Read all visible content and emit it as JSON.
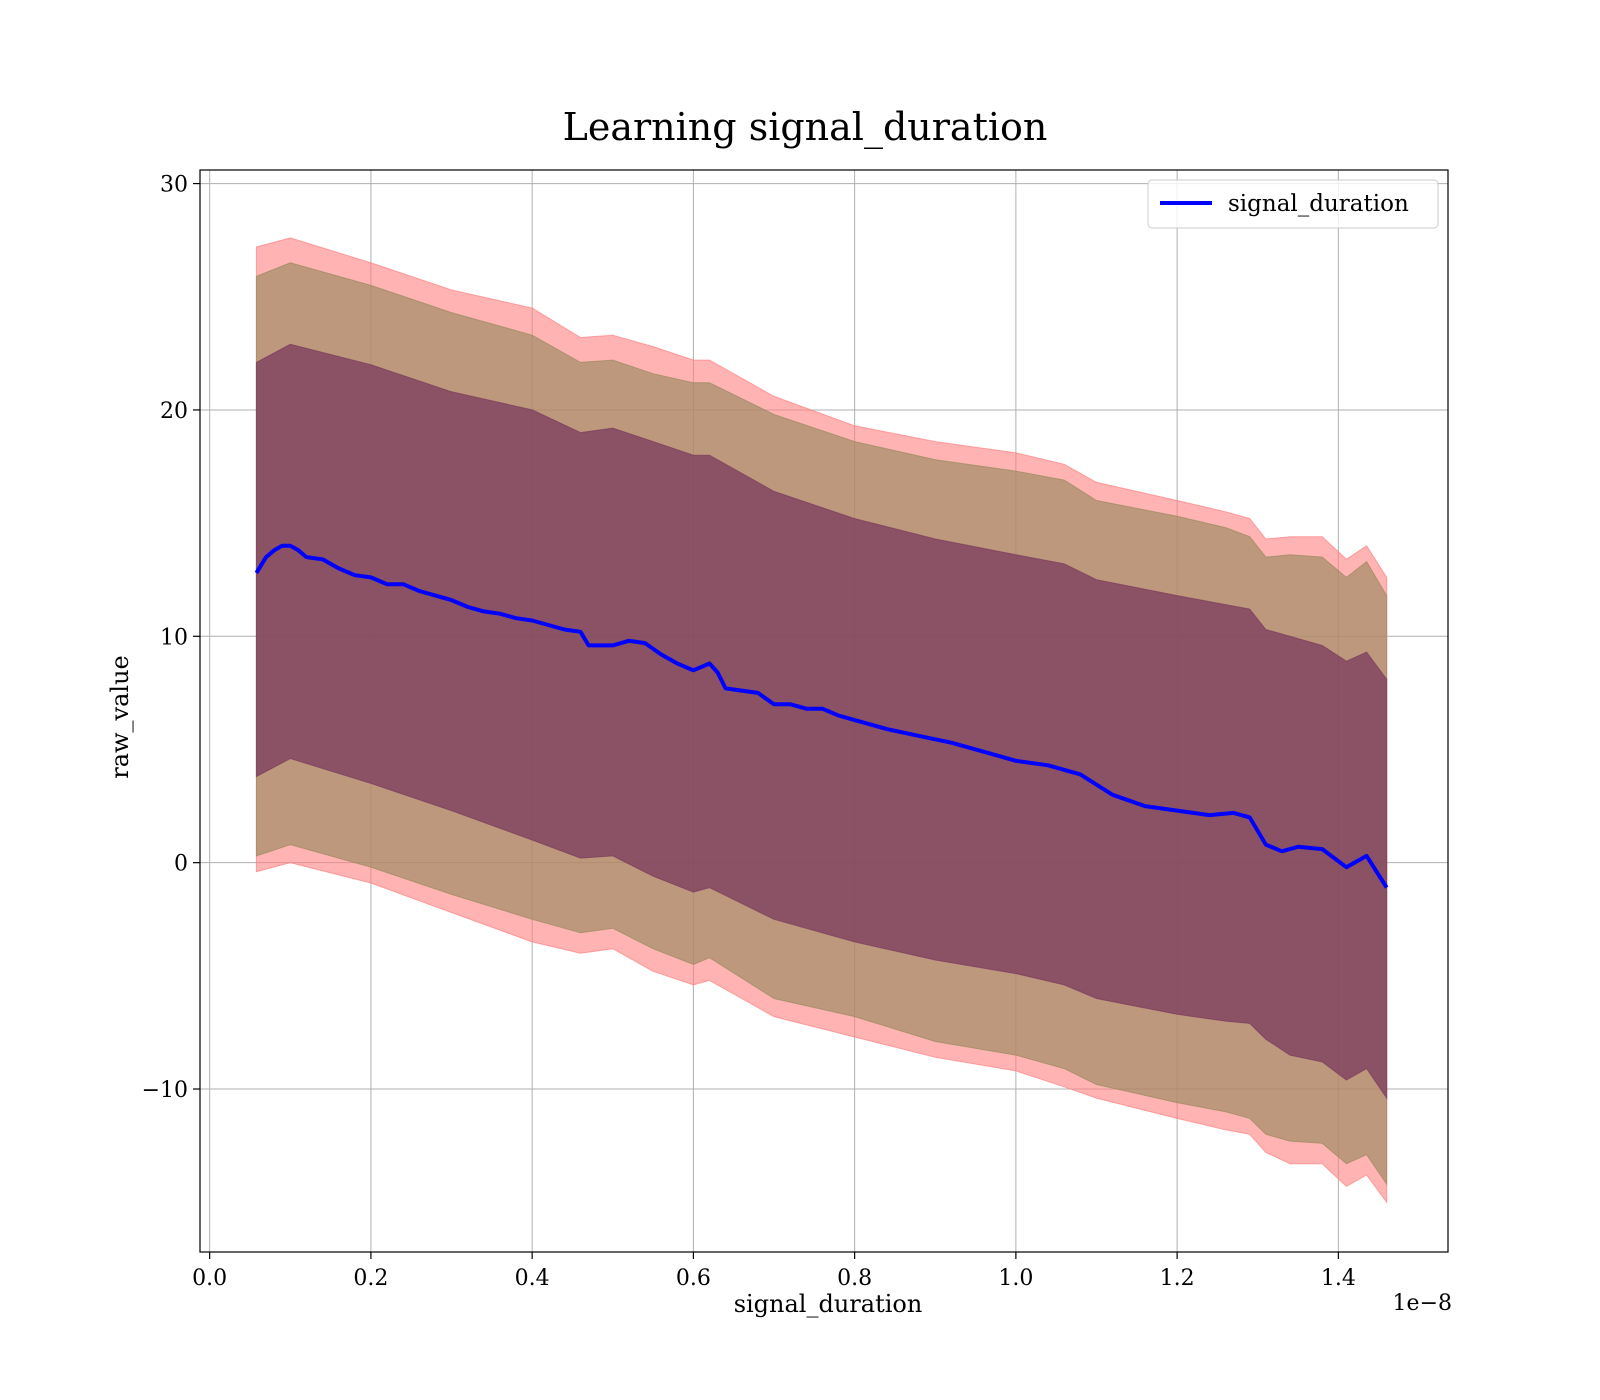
{
  "chart_data": {
    "type": "line",
    "title": "Learning signal_duration",
    "xlabel": "signal_duration",
    "ylabel": "raw_value",
    "x_offset_label": "1e−8",
    "xlim": [
      -0.012,
      1.536
    ],
    "ylim": [
      -17.2,
      30.6
    ],
    "x_ticks": [
      0.0,
      0.2,
      0.4,
      0.6,
      0.8,
      1.0,
      1.2,
      1.4
    ],
    "x_tick_labels": [
      "0.0",
      "0.2",
      "0.4",
      "0.6",
      "0.8",
      "1.0",
      "1.2",
      "1.4"
    ],
    "y_ticks": [
      -10,
      0,
      10,
      20,
      30
    ],
    "y_tick_labels": [
      "−10",
      "0",
      "10",
      "20",
      "30"
    ],
    "grid": true,
    "legend_position": "top-right",
    "series": [
      {
        "name": "signal_duration",
        "color": "#0000ff",
        "x": [
          0.058,
          0.07,
          0.08,
          0.09,
          0.1,
          0.11,
          0.12,
          0.14,
          0.16,
          0.18,
          0.2,
          0.22,
          0.24,
          0.26,
          0.28,
          0.3,
          0.32,
          0.34,
          0.36,
          0.38,
          0.4,
          0.42,
          0.44,
          0.46,
          0.47,
          0.5,
          0.52,
          0.54,
          0.56,
          0.58,
          0.6,
          0.62,
          0.63,
          0.64,
          0.66,
          0.68,
          0.7,
          0.72,
          0.74,
          0.76,
          0.78,
          0.8,
          0.84,
          0.88,
          0.92,
          0.96,
          1.0,
          1.04,
          1.08,
          1.12,
          1.16,
          1.2,
          1.24,
          1.27,
          1.29,
          1.31,
          1.33,
          1.35,
          1.38,
          1.41,
          1.435,
          1.46
        ],
        "values": [
          12.8,
          13.5,
          13.8,
          14.0,
          14.0,
          13.8,
          13.5,
          13.4,
          13.0,
          12.7,
          12.6,
          12.3,
          12.3,
          12.0,
          11.8,
          11.6,
          11.3,
          11.1,
          11.0,
          10.8,
          10.7,
          10.5,
          10.3,
          10.2,
          9.6,
          9.6,
          9.8,
          9.7,
          9.2,
          8.8,
          8.5,
          8.8,
          8.4,
          7.7,
          7.6,
          7.5,
          7.0,
          7.0,
          6.8,
          6.8,
          6.5,
          6.3,
          5.9,
          5.6,
          5.3,
          4.9,
          4.5,
          4.3,
          3.9,
          3.0,
          2.5,
          2.3,
          2.1,
          2.2,
          2.0,
          0.8,
          0.5,
          0.7,
          0.6,
          -0.2,
          0.3,
          -1.1
        ]
      }
    ],
    "bands": [
      {
        "color": "#ff8080",
        "opacity": 0.6,
        "x": [
          0.058,
          0.1,
          0.2,
          0.3,
          0.4,
          0.46,
          0.5,
          0.55,
          0.6,
          0.62,
          0.7,
          0.8,
          0.9,
          1.0,
          1.06,
          1.1,
          1.2,
          1.26,
          1.29,
          1.31,
          1.34,
          1.38,
          1.41,
          1.435,
          1.46
        ],
        "upper": [
          27.2,
          27.6,
          26.5,
          25.3,
          24.5,
          23.2,
          23.3,
          22.8,
          22.2,
          22.2,
          20.6,
          19.3,
          18.6,
          18.1,
          17.6,
          16.8,
          16.0,
          15.5,
          15.2,
          14.3,
          14.4,
          14.4,
          13.4,
          14.0,
          12.6
        ],
        "lower": [
          -0.4,
          -0.0,
          -0.9,
          -2.2,
          -3.5,
          -4.0,
          -3.8,
          -4.8,
          -5.4,
          -5.2,
          -6.8,
          -7.7,
          -8.6,
          -9.2,
          -9.9,
          -10.4,
          -11.3,
          -11.8,
          -12.0,
          -12.8,
          -13.3,
          -13.3,
          -14.3,
          -13.8,
          -15.0
        ]
      },
      {
        "color": "#9a8a5f",
        "opacity": 0.65,
        "x": [
          0.058,
          0.1,
          0.2,
          0.3,
          0.4,
          0.46,
          0.5,
          0.55,
          0.6,
          0.62,
          0.7,
          0.8,
          0.9,
          1.0,
          1.06,
          1.1,
          1.2,
          1.26,
          1.29,
          1.31,
          1.34,
          1.38,
          1.41,
          1.435,
          1.46
        ],
        "upper": [
          25.9,
          26.5,
          25.5,
          24.3,
          23.3,
          22.1,
          22.2,
          21.6,
          21.2,
          21.2,
          19.8,
          18.6,
          17.8,
          17.3,
          16.9,
          16.0,
          15.3,
          14.8,
          14.4,
          13.5,
          13.6,
          13.5,
          12.6,
          13.3,
          11.8
        ],
        "lower": [
          0.3,
          0.8,
          -0.2,
          -1.4,
          -2.5,
          -3.1,
          -2.9,
          -3.8,
          -4.5,
          -4.2,
          -6.0,
          -6.8,
          -7.9,
          -8.5,
          -9.1,
          -9.8,
          -10.6,
          -11.0,
          -11.3,
          -12.0,
          -12.3,
          -12.4,
          -13.3,
          -12.9,
          -14.2
        ]
      },
      {
        "color": "#7b3a5e",
        "opacity": 0.75,
        "x": [
          0.058,
          0.1,
          0.2,
          0.3,
          0.4,
          0.46,
          0.5,
          0.55,
          0.6,
          0.62,
          0.7,
          0.8,
          0.9,
          1.0,
          1.06,
          1.1,
          1.2,
          1.26,
          1.29,
          1.31,
          1.34,
          1.38,
          1.41,
          1.435,
          1.46
        ],
        "upper": [
          22.1,
          22.9,
          22.0,
          20.8,
          20.0,
          19.0,
          19.2,
          18.6,
          18.0,
          18.0,
          16.4,
          15.2,
          14.3,
          13.6,
          13.2,
          12.5,
          11.8,
          11.4,
          11.2,
          10.3,
          10.0,
          9.6,
          8.9,
          9.3,
          8.1
        ],
        "lower": [
          3.8,
          4.6,
          3.5,
          2.3,
          1.0,
          0.2,
          0.3,
          -0.6,
          -1.3,
          -1.1,
          -2.5,
          -3.5,
          -4.3,
          -4.9,
          -5.4,
          -6.0,
          -6.7,
          -7.0,
          -7.1,
          -7.8,
          -8.5,
          -8.8,
          -9.6,
          -9.1,
          -10.4
        ]
      }
    ]
  }
}
